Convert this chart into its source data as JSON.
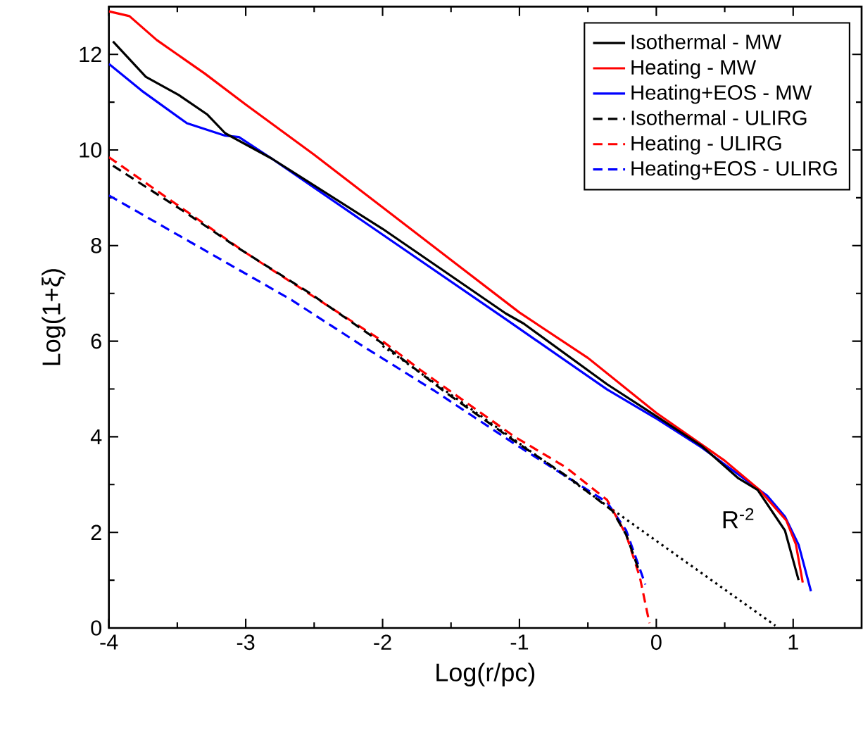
{
  "chart_data": {
    "type": "line",
    "xlabel": "Log(r/pc)",
    "ylabel": "Log(1+ξ)",
    "xlim": [
      -4,
      1.5
    ],
    "ylim": [
      0,
      13
    ],
    "xticks": [
      -4,
      -3,
      -2,
      -1,
      0,
      1
    ],
    "yticks": [
      0,
      2,
      4,
      6,
      8,
      10,
      12
    ],
    "grid": false,
    "legend": "top right",
    "marker": "none",
    "series": [
      {
        "name": "Isothermal - MW",
        "color": "#000000",
        "line_style": "solid",
        "x": [
          -3.97,
          -3.73,
          -3.49,
          -3.28,
          -3.15,
          -2.81,
          -2.0,
          -1.1,
          -0.97,
          -0.36,
          -0.01,
          0.33,
          0.6,
          0.74,
          0.94,
          1.04
        ],
        "values": [
          12.27,
          11.53,
          11.15,
          10.74,
          10.35,
          9.82,
          8.35,
          6.58,
          6.37,
          5.1,
          4.45,
          3.81,
          3.13,
          2.89,
          2.04,
          1.0
        ]
      },
      {
        "name": "Heating - MW",
        "color": "#ff0000",
        "line_style": "solid",
        "x": [
          -4.0,
          -3.85,
          -3.65,
          -3.5,
          -3.3,
          -3.0,
          -2.5,
          -2.0,
          -1.5,
          -1.0,
          -0.5,
          0.0,
          0.5,
          0.75,
          0.95,
          1.02,
          1.07
        ],
        "values": [
          12.9,
          12.8,
          12.3,
          12.0,
          11.6,
          10.95,
          9.9,
          8.8,
          7.7,
          6.6,
          5.65,
          4.5,
          3.5,
          2.9,
          2.25,
          1.75,
          0.95
        ]
      },
      {
        "name": "Heating+EOS - MW",
        "color": "#0000ff",
        "line_style": "solid",
        "x": [
          -4.0,
          -3.76,
          -3.43,
          -3.15,
          -3.05,
          -2.81,
          -2.0,
          -1.1,
          -0.36,
          -0.01,
          0.33,
          0.81,
          0.94,
          1.04,
          1.13
        ],
        "values": [
          11.8,
          11.24,
          10.56,
          10.3,
          10.27,
          9.82,
          8.23,
          6.46,
          4.99,
          4.4,
          3.78,
          2.77,
          2.33,
          1.74,
          0.77
        ]
      },
      {
        "name": "Isothermal - ULIRG",
        "color": "#000000",
        "line_style": "dashed",
        "x": [
          -3.97,
          -3.46,
          -3.05,
          -2.54,
          -2.02,
          -1.55,
          -1.04,
          -0.63,
          -0.32,
          -0.22,
          -0.12
        ],
        "values": [
          9.67,
          8.73,
          7.94,
          7.02,
          5.99,
          4.95,
          3.92,
          3.13,
          2.45,
          1.95,
          1.15
        ]
      },
      {
        "name": "Heating - ULIRG",
        "color": "#ff0000",
        "line_style": "dashed",
        "x": [
          -4.0,
          -3.0,
          -2.0,
          -1.72,
          -1.04,
          -0.66,
          -0.36,
          -0.22,
          -0.12,
          -0.05
        ],
        "values": [
          9.85,
          7.85,
          6.0,
          5.39,
          4.01,
          3.36,
          2.68,
          1.95,
          1.06,
          0.1
        ]
      },
      {
        "name": "Heating+EOS - ULIRG",
        "color": "#0000ff",
        "line_style": "dashed",
        "x": [
          -4.0,
          -2.67,
          -2.13,
          -1.62,
          -1.04,
          -0.36,
          -0.22,
          -0.08
        ],
        "values": [
          9.05,
          6.87,
          5.87,
          4.96,
          3.86,
          2.63,
          2.04,
          0.91
        ]
      },
      {
        "color": "#000000",
        "line_style": "dotted",
        "x": [
          -2.0,
          0.87
        ],
        "values": [
          5.9,
          0.05
        ]
      }
    ],
    "annotations": [
      "R$^{-2}$"
    ]
  }
}
